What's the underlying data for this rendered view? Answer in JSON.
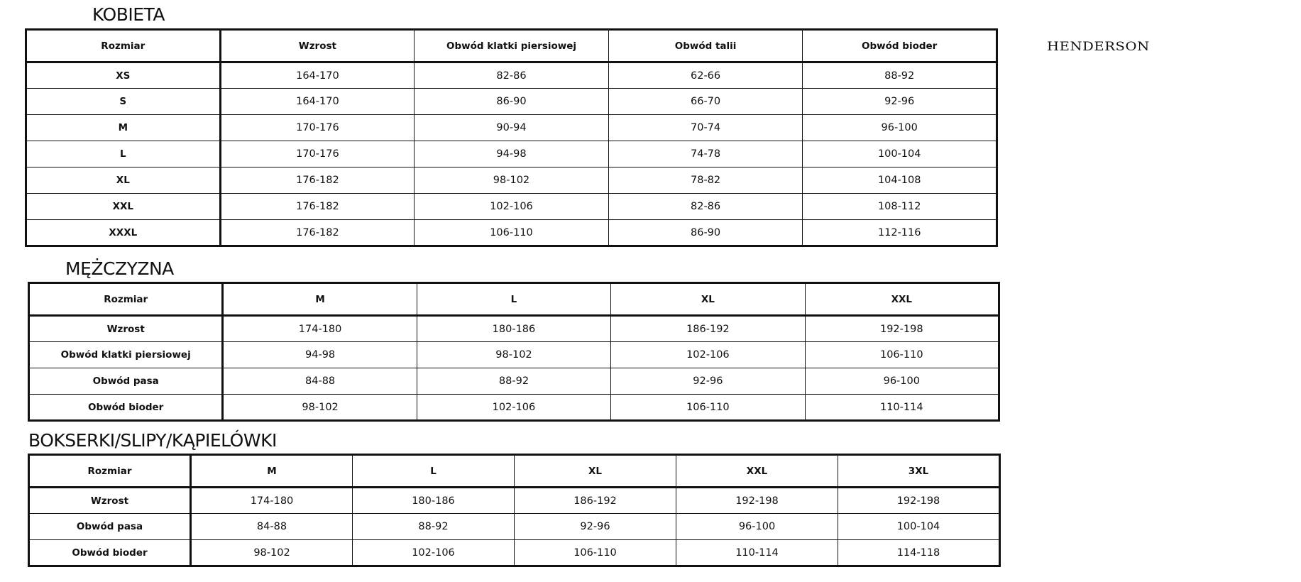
{
  "brand": "HENDERSON",
  "women": {
    "title": "KOBIETA",
    "headers": [
      "Rozmiar",
      "Wzrost",
      "Obwód klatki piersiowej",
      "Obwód talii",
      "Obwód bioder"
    ],
    "rows": [
      [
        "XS",
        "164-170",
        "82-86",
        "62-66",
        "88-92"
      ],
      [
        "S",
        "164-170",
        "86-90",
        "66-70",
        "92-96"
      ],
      [
        "M",
        "170-176",
        "90-94",
        "70-74",
        "96-100"
      ],
      [
        "L",
        "170-176",
        "94-98",
        "74-78",
        "100-104"
      ],
      [
        "XL",
        "176-182",
        "98-102",
        "78-82",
        "104-108"
      ],
      [
        "XXL",
        "176-182",
        "102-106",
        "82-86",
        "108-112"
      ],
      [
        "XXXL",
        "176-182",
        "106-110",
        "86-90",
        "112-116"
      ]
    ]
  },
  "men": {
    "title": "MĘŻCZYZNA",
    "headers": [
      "Rozmiar",
      "M",
      "L",
      "XL",
      "XXL"
    ],
    "rows": [
      [
        "Wzrost",
        "174-180",
        "180-186",
        "186-192",
        "192-198"
      ],
      [
        "Obwód klatki piersiowej",
        "94-98",
        "98-102",
        "102-106",
        "106-110"
      ],
      [
        "Obwód pasa",
        "84-88",
        "88-92",
        "92-96",
        "96-100"
      ],
      [
        "Obwód bioder",
        "98-102",
        "102-106",
        "106-110",
        "110-114"
      ]
    ]
  },
  "underwear": {
    "title": "BOKSERKI/SLIPY/KĄPIELÓWKI",
    "headers": [
      "Rozmiar",
      "M",
      "L",
      "XL",
      "XXL",
      "3XL"
    ],
    "rows": [
      [
        "Wzrost",
        "174-180",
        "180-186",
        "186-192",
        "192-198",
        "192-198"
      ],
      [
        "Obwód pasa",
        "84-88",
        "88-92",
        "92-96",
        "96-100",
        "100-104"
      ],
      [
        "Obwód bioder",
        "98-102",
        "102-106",
        "106-110",
        "110-114",
        "114-118"
      ]
    ]
  }
}
